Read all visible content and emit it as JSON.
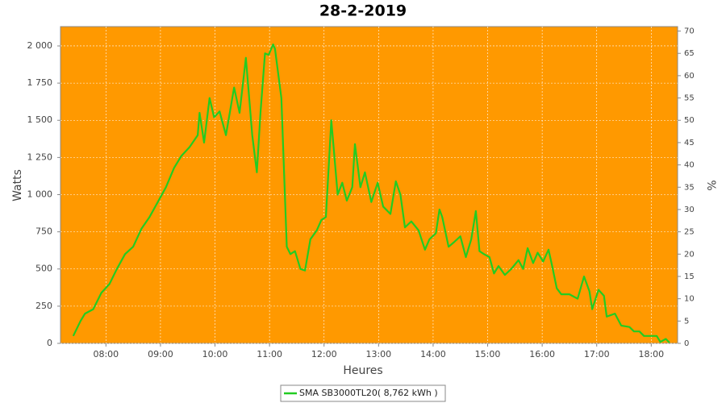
{
  "chart_data": {
    "type": "line",
    "title": "28-2-2019",
    "x_label": "Heures",
    "y_label": "Watts",
    "y2_label": "%",
    "x": [
      "07:24",
      "07:32",
      "07:37",
      "07:46",
      "07:55",
      "08:04",
      "08:12",
      "08:21",
      "08:30",
      "08:39",
      "08:48",
      "08:57",
      "09:06",
      "09:15",
      "09:23",
      "09:32",
      "09:41",
      "09:43",
      "09:48",
      "09:54",
      "09:59",
      "10:05",
      "10:12",
      "10:21",
      "10:27",
      "10:34",
      "10:41",
      "10:46",
      "10:50",
      "10:55",
      "10:59",
      "11:04",
      "11:06",
      "11:13",
      "11:19",
      "11:23",
      "11:28",
      "11:34",
      "11:39",
      "11:45",
      "11:52",
      "11:57",
      "12:02",
      "12:08",
      "12:15",
      "12:20",
      "12:25",
      "12:31",
      "12:34",
      "12:40",
      "12:45",
      "12:52",
      "12:59",
      "13:05",
      "13:13",
      "13:19",
      "13:24",
      "13:29",
      "13:36",
      "13:44",
      "13:51",
      "13:56",
      "14:03",
      "14:07",
      "14:10",
      "14:17",
      "14:23",
      "14:30",
      "14:36",
      "14:42",
      "14:47",
      "14:51",
      "14:56",
      "15:02",
      "15:07",
      "15:12",
      "15:19",
      "15:26",
      "15:34",
      "15:39",
      "15:44",
      "15:50",
      "15:55",
      "16:01",
      "16:07",
      "16:11",
      "16:16",
      "16:21",
      "16:30",
      "16:39",
      "16:46",
      "16:52",
      "16:55",
      "17:02",
      "17:08",
      "17:11",
      "17:20",
      "17:27",
      "17:36",
      "17:41",
      "17:47",
      "17:52",
      "17:59",
      "18:06",
      "18:10",
      "18:16",
      "18:20"
    ],
    "series": [
      {
        "name": "SMA SB3000TL20( 8,762 kWh )",
        "color": "#22cc22",
        "values": [
          50,
          150,
          200,
          230,
          340,
          400,
          500,
          600,
          650,
          770,
          850,
          950,
          1050,
          1180,
          1260,
          1320,
          1400,
          1550,
          1350,
          1650,
          1520,
          1560,
          1400,
          1720,
          1550,
          1920,
          1400,
          1150,
          1550,
          1950,
          1940,
          2010,
          1980,
          1650,
          650,
          600,
          620,
          500,
          490,
          700,
          760,
          830,
          850,
          1500,
          1000,
          1080,
          960,
          1050,
          1340,
          1050,
          1150,
          950,
          1080,
          920,
          870,
          1090,
          1000,
          780,
          820,
          760,
          630,
          700,
          740,
          900,
          850,
          650,
          680,
          720,
          580,
          700,
          890,
          620,
          600,
          580,
          470,
          520,
          460,
          500,
          560,
          500,
          640,
          540,
          610,
          550,
          630,
          520,
          370,
          330,
          330,
          300,
          450,
          350,
          230,
          360,
          320,
          180,
          200,
          120,
          110,
          80,
          80,
          50,
          50,
          50,
          10,
          30,
          5
        ]
      }
    ],
    "xlim": [
      "07:10",
      "18:29"
    ],
    "xticks": [
      "08:00",
      "09:00",
      "10:00",
      "11:00",
      "12:00",
      "13:00",
      "14:00",
      "15:00",
      "16:00",
      "17:00",
      "18:00"
    ],
    "ylim": [
      0,
      2130
    ],
    "yticks": [
      0,
      250,
      500,
      750,
      {
        "value": 1000,
        "label": "1 000"
      },
      {
        "value": 1250,
        "label": "1 250"
      },
      {
        "value": 1500,
        "label": "1 500"
      },
      {
        "value": 1750,
        "label": "1 750"
      },
      {
        "value": 2000,
        "label": "2 000"
      }
    ],
    "y2lim": [
      0,
      71
    ],
    "y2ticks": [
      0,
      5,
      10,
      15,
      20,
      25,
      30,
      35,
      40,
      45,
      50,
      55,
      60,
      65,
      70
    ],
    "grid": true,
    "background": "#ff9900"
  }
}
